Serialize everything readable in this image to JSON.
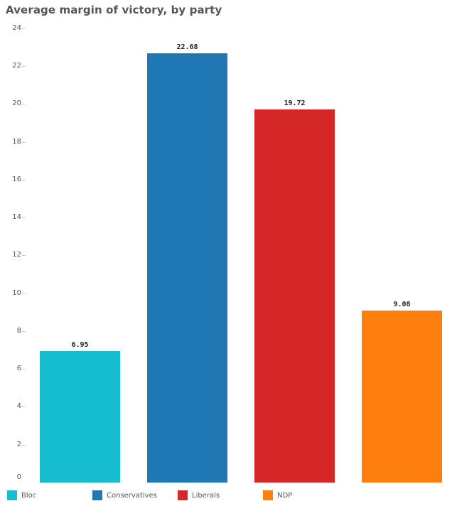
{
  "chart_data": {
    "type": "bar",
    "title": "Average margin of victory, by party",
    "categories": [
      "Bloc",
      "Conservatives",
      "Liberals",
      "NDP"
    ],
    "values": [
      6.95,
      22.68,
      19.72,
      9.08
    ],
    "value_labels": [
      "6.95",
      "22.68",
      "19.72",
      "9.08"
    ],
    "colors": [
      "#17becf",
      "#1f77b4",
      "#d62728",
      "#ff7f0e"
    ],
    "xlabel": "",
    "ylabel": "",
    "ylim": [
      0,
      24
    ],
    "yticks": [
      0,
      2,
      4,
      6,
      8,
      10,
      12,
      14,
      16,
      18,
      20,
      22,
      24
    ],
    "grid": false,
    "legend_position": "bottom",
    "legend": [
      "Bloc",
      "Conservatives",
      "Liberals",
      "NDP"
    ]
  },
  "title": "Average margin of victory, by party",
  "yaxis": {
    "ticks": [
      "0",
      "2",
      "4",
      "6",
      "8",
      "10",
      "12",
      "14",
      "16",
      "18",
      "20",
      "22",
      "24"
    ]
  },
  "bars": [
    {
      "label": "6.95",
      "name": "Bloc"
    },
    {
      "label": "22.68",
      "name": "Conservatives"
    },
    {
      "label": "19.72",
      "name": "Liberals"
    },
    {
      "label": "9.08",
      "name": "NDP"
    }
  ],
  "legend": [
    {
      "label": "Bloc",
      "color": "#17becf"
    },
    {
      "label": "Conservatives",
      "color": "#1f77b4"
    },
    {
      "label": "Liberals",
      "color": "#d62728"
    },
    {
      "label": "NDP",
      "color": "#ff7f0e"
    }
  ]
}
